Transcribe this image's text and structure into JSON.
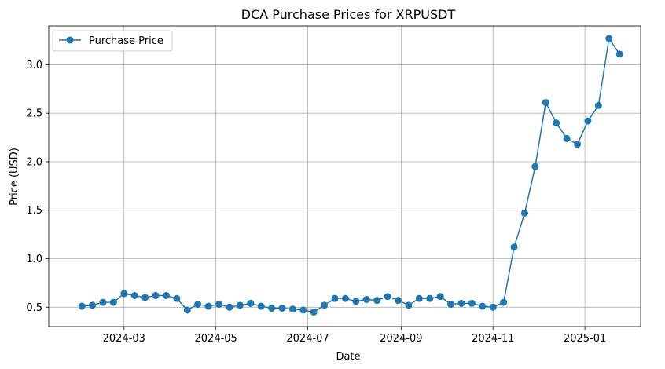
{
  "chart_data": {
    "type": "line",
    "title": "DCA Purchase Prices for XRPUSDT",
    "xlabel": "Date",
    "ylabel": "Price (USD)",
    "xlim": [
      "2024-01-11",
      "2025-02-07"
    ],
    "ylim": [
      0.3,
      3.4
    ],
    "x_ticks": [
      "2024-03",
      "2024-05",
      "2024-07",
      "2024-09",
      "2024-11",
      "2025-01"
    ],
    "y_ticks": [
      "0.5",
      "1.0",
      "1.5",
      "2.0",
      "2.5",
      "3.0"
    ],
    "grid": true,
    "legend_position": "top-left",
    "series": [
      {
        "name": "Purchase Price",
        "color": "#1f77b4",
        "marker": "circle",
        "x": [
          "2024-02-02",
          "2024-02-09",
          "2024-02-16",
          "2024-02-23",
          "2024-03-01",
          "2024-03-08",
          "2024-03-15",
          "2024-03-22",
          "2024-03-29",
          "2024-04-05",
          "2024-04-12",
          "2024-04-19",
          "2024-04-26",
          "2024-05-03",
          "2024-05-10",
          "2024-05-17",
          "2024-05-24",
          "2024-05-31",
          "2024-06-07",
          "2024-06-14",
          "2024-06-21",
          "2024-06-28",
          "2024-07-05",
          "2024-07-12",
          "2024-07-19",
          "2024-07-26",
          "2024-08-02",
          "2024-08-09",
          "2024-08-16",
          "2024-08-23",
          "2024-08-30",
          "2024-09-06",
          "2024-09-13",
          "2024-09-20",
          "2024-09-27",
          "2024-10-04",
          "2024-10-11",
          "2024-10-18",
          "2024-10-25",
          "2024-11-01",
          "2024-11-08",
          "2024-11-15",
          "2024-11-22",
          "2024-11-29",
          "2024-12-06",
          "2024-12-13",
          "2024-12-20",
          "2024-12-27",
          "2025-01-03",
          "2025-01-10",
          "2025-01-17",
          "2025-01-24"
        ],
        "values": [
          0.51,
          0.52,
          0.55,
          0.55,
          0.64,
          0.62,
          0.6,
          0.62,
          0.62,
          0.59,
          0.47,
          0.53,
          0.51,
          0.53,
          0.5,
          0.52,
          0.54,
          0.51,
          0.49,
          0.49,
          0.48,
          0.47,
          0.45,
          0.52,
          0.59,
          0.59,
          0.56,
          0.58,
          0.57,
          0.61,
          0.57,
          0.52,
          0.59,
          0.59,
          0.61,
          0.53,
          0.54,
          0.54,
          0.51,
          0.5,
          0.55,
          1.12,
          1.47,
          1.95,
          2.61,
          2.4,
          2.24,
          2.18,
          2.42,
          2.58,
          3.27,
          3.11
        ]
      }
    ]
  }
}
